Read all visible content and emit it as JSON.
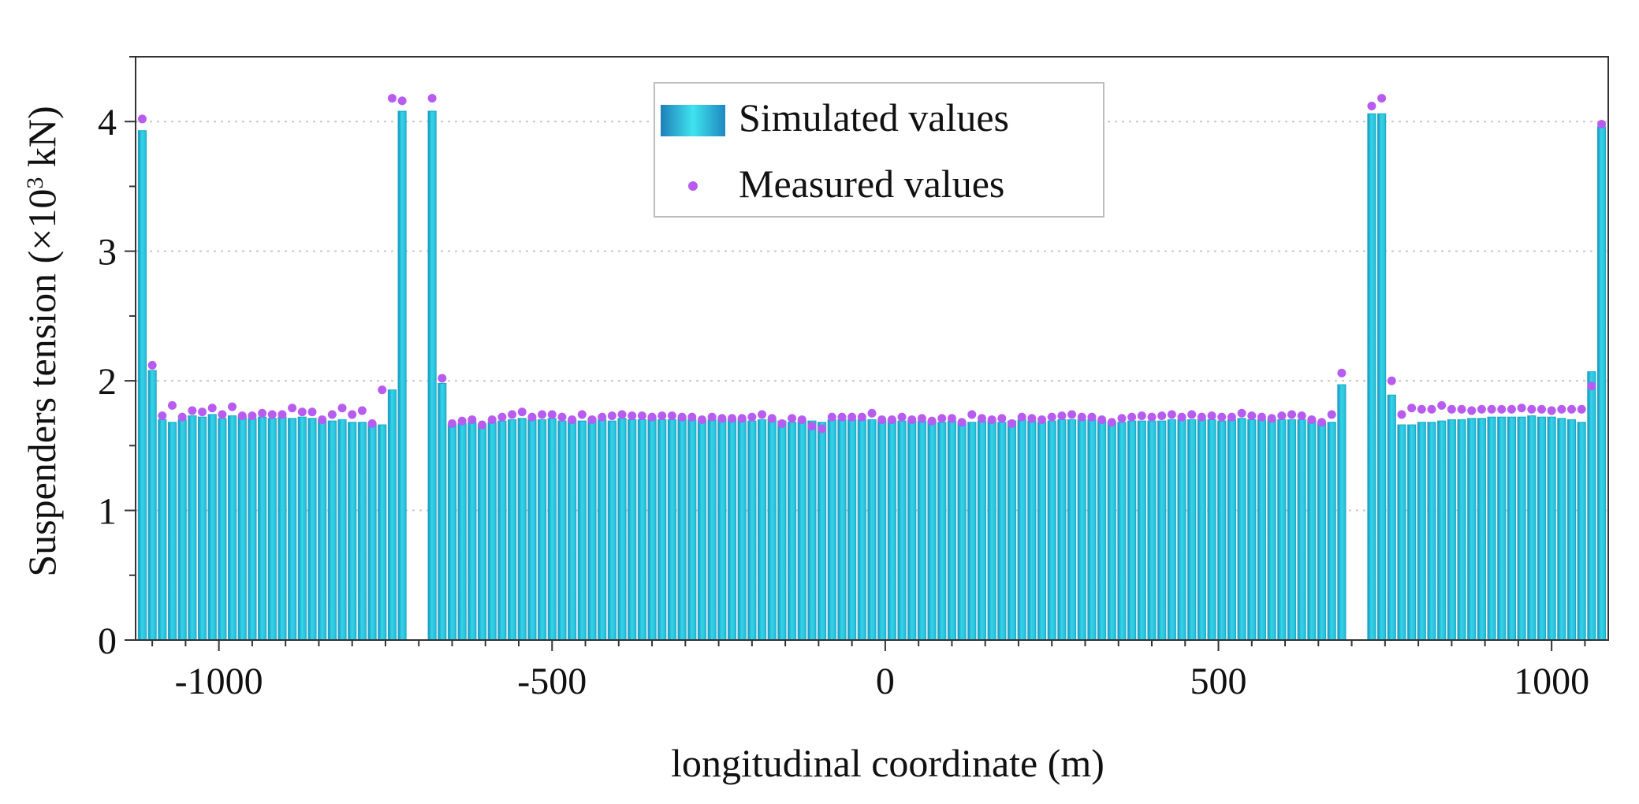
{
  "chart_data": {
    "type": "bar",
    "xlabel": "longitudinal coordinate (m)",
    "ylabel_parts": {
      "prefix": "Suspenders tension (×10",
      "superscript": "3",
      "suffix": " kN)"
    },
    "xlim": [
      -1125,
      1085
    ],
    "ylim": [
      0,
      4.5
    ],
    "x_ticks": [
      -1000,
      -500,
      0,
      500,
      1000
    ],
    "y_ticks": [
      0,
      1,
      2,
      3,
      4
    ],
    "grid": "horizontal dotted",
    "legend_position": "top-center",
    "bar_width": 12,
    "colors": {
      "bar": "#33d6e8",
      "bar_edge": "#1aa9c4",
      "bar_dark": "#1e90c0",
      "marker": "#b85cf0",
      "grid": "#c8c8c8",
      "axis": "#333333"
    },
    "series": [
      {
        "name": "Simulated values",
        "kind": "bar",
        "x": [
          -1115,
          -1100,
          -1085,
          -1070,
          -1055,
          -1040,
          -1025,
          -1010,
          -995,
          -980,
          -965,
          -950,
          -935,
          -920,
          -905,
          -890,
          -875,
          -860,
          -845,
          -830,
          -815,
          -800,
          -785,
          -770,
          -755,
          -740,
          -725,
          -680,
          -665,
          -650,
          -635,
          -620,
          -605,
          -590,
          -575,
          -560,
          -545,
          -530,
          -515,
          -500,
          -485,
          -470,
          -455,
          -440,
          -425,
          -410,
          -395,
          -380,
          -365,
          -350,
          -335,
          -320,
          -305,
          -290,
          -275,
          -260,
          -245,
          -230,
          -215,
          -200,
          -185,
          -170,
          -155,
          -140,
          -125,
          -110,
          -95,
          -80,
          -65,
          -50,
          -35,
          -20,
          -5,
          10,
          25,
          40,
          55,
          70,
          85,
          100,
          115,
          130,
          145,
          160,
          175,
          190,
          205,
          220,
          235,
          250,
          265,
          280,
          295,
          310,
          325,
          340,
          355,
          370,
          385,
          400,
          415,
          430,
          445,
          460,
          475,
          490,
          505,
          520,
          535,
          550,
          565,
          580,
          595,
          610,
          625,
          640,
          655,
          670,
          685,
          730,
          745,
          760,
          775,
          790,
          805,
          820,
          835,
          850,
          865,
          880,
          895,
          910,
          925,
          940,
          955,
          970,
          985,
          1000,
          1015,
          1030,
          1045,
          1060,
          1075
        ],
        "values": [
          3.93,
          2.08,
          1.7,
          1.68,
          1.7,
          1.73,
          1.72,
          1.74,
          1.71,
          1.73,
          1.72,
          1.71,
          1.72,
          1.71,
          1.72,
          1.71,
          1.72,
          1.71,
          1.7,
          1.69,
          1.7,
          1.68,
          1.68,
          1.67,
          1.66,
          1.93,
          4.08,
          4.08,
          1.98,
          1.66,
          1.67,
          1.68,
          1.66,
          1.68,
          1.69,
          1.7,
          1.71,
          1.7,
          1.7,
          1.71,
          1.69,
          1.7,
          1.69,
          1.71,
          1.7,
          1.69,
          1.71,
          1.7,
          1.7,
          1.71,
          1.7,
          1.7,
          1.71,
          1.7,
          1.69,
          1.7,
          1.7,
          1.7,
          1.7,
          1.69,
          1.7,
          1.7,
          1.69,
          1.68,
          1.69,
          1.69,
          1.68,
          1.7,
          1.7,
          1.7,
          1.7,
          1.7,
          1.69,
          1.7,
          1.69,
          1.69,
          1.69,
          1.69,
          1.68,
          1.69,
          1.68,
          1.68,
          1.69,
          1.69,
          1.68,
          1.69,
          1.7,
          1.69,
          1.68,
          1.69,
          1.7,
          1.7,
          1.7,
          1.7,
          1.69,
          1.68,
          1.68,
          1.69,
          1.69,
          1.69,
          1.69,
          1.7,
          1.7,
          1.7,
          1.7,
          1.7,
          1.69,
          1.7,
          1.71,
          1.7,
          1.7,
          1.7,
          1.7,
          1.7,
          1.7,
          1.69,
          1.68,
          1.68,
          1.97,
          4.06,
          4.06,
          1.89,
          1.66,
          1.66,
          1.68,
          1.68,
          1.69,
          1.7,
          1.7,
          1.71,
          1.71,
          1.72,
          1.72,
          1.72,
          1.72,
          1.73,
          1.72,
          1.72,
          1.71,
          1.7,
          1.68,
          2.07,
          3.96
        ]
      },
      {
        "name": "Measured values",
        "kind": "scatter",
        "x": [
          -1115,
          -1100,
          -1085,
          -1070,
          -1055,
          -1040,
          -1025,
          -1010,
          -995,
          -980,
          -965,
          -950,
          -935,
          -920,
          -905,
          -890,
          -875,
          -860,
          -845,
          -830,
          -815,
          -800,
          -785,
          -770,
          -755,
          -740,
          -725,
          -680,
          -665,
          -650,
          -635,
          -620,
          -605,
          -590,
          -575,
          -560,
          -545,
          -530,
          -515,
          -500,
          -485,
          -470,
          -455,
          -440,
          -425,
          -410,
          -395,
          -380,
          -365,
          -350,
          -335,
          -320,
          -305,
          -290,
          -275,
          -260,
          -245,
          -230,
          -215,
          -200,
          -185,
          -170,
          -155,
          -140,
          -125,
          -110,
          -95,
          -80,
          -65,
          -50,
          -35,
          -20,
          -5,
          10,
          25,
          40,
          55,
          70,
          85,
          100,
          115,
          130,
          145,
          160,
          175,
          190,
          205,
          220,
          235,
          250,
          265,
          280,
          295,
          310,
          325,
          340,
          355,
          370,
          385,
          400,
          415,
          430,
          445,
          460,
          475,
          490,
          505,
          520,
          535,
          550,
          565,
          580,
          595,
          610,
          625,
          640,
          655,
          670,
          685,
          730,
          745,
          760,
          775,
          790,
          805,
          820,
          835,
          850,
          865,
          880,
          895,
          910,
          925,
          940,
          955,
          970,
          985,
          1000,
          1015,
          1030,
          1045,
          1060,
          1075
        ],
        "values": [
          4.02,
          2.12,
          1.73,
          1.81,
          1.72,
          1.77,
          1.76,
          1.79,
          1.74,
          1.8,
          1.73,
          1.73,
          1.75,
          1.74,
          1.74,
          1.79,
          1.76,
          1.76,
          1.7,
          1.74,
          1.79,
          1.74,
          1.77,
          1.67,
          1.93,
          4.18,
          4.16,
          4.18,
          2.02,
          1.67,
          1.69,
          1.7,
          1.66,
          1.7,
          1.72,
          1.74,
          1.76,
          1.72,
          1.74,
          1.74,
          1.72,
          1.7,
          1.74,
          1.7,
          1.72,
          1.73,
          1.74,
          1.73,
          1.73,
          1.72,
          1.73,
          1.73,
          1.72,
          1.72,
          1.7,
          1.72,
          1.71,
          1.71,
          1.71,
          1.72,
          1.74,
          1.71,
          1.67,
          1.71,
          1.7,
          1.65,
          1.63,
          1.72,
          1.72,
          1.72,
          1.72,
          1.75,
          1.7,
          1.7,
          1.72,
          1.7,
          1.71,
          1.69,
          1.71,
          1.71,
          1.68,
          1.74,
          1.71,
          1.7,
          1.71,
          1.67,
          1.72,
          1.71,
          1.7,
          1.72,
          1.73,
          1.74,
          1.72,
          1.72,
          1.7,
          1.68,
          1.71,
          1.72,
          1.73,
          1.72,
          1.73,
          1.74,
          1.72,
          1.74,
          1.72,
          1.73,
          1.72,
          1.72,
          1.75,
          1.73,
          1.72,
          1.71,
          1.73,
          1.74,
          1.73,
          1.7,
          1.68,
          1.74,
          2.06,
          4.12,
          4.18,
          2.0,
          1.74,
          1.79,
          1.78,
          1.78,
          1.81,
          1.78,
          1.78,
          1.77,
          1.78,
          1.78,
          1.78,
          1.78,
          1.79,
          1.78,
          1.78,
          1.77,
          1.78,
          1.78,
          1.78,
          1.96,
          3.98
        ]
      }
    ]
  }
}
